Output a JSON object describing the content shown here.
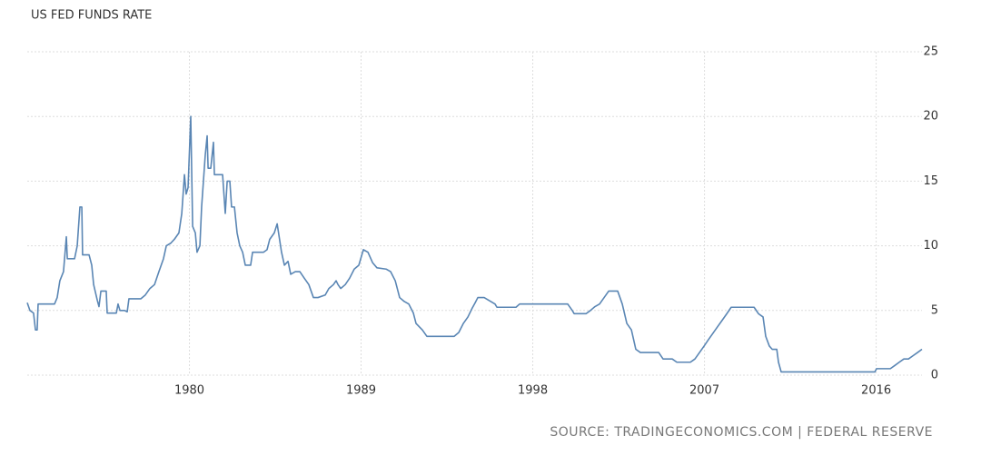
{
  "chart_data": {
    "type": "line",
    "title": "US FED FUNDS RATE",
    "source": "SOURCE: TRADINGECONOMICS.COM | FEDERAL RESERVE",
    "x": [
      1971.5,
      1971.64,
      1971.83,
      1971.93,
      1972.02,
      1972.07,
      1972.93,
      1973.07,
      1973.21,
      1973.4,
      1973.55,
      1973.6,
      1973.98,
      1974.12,
      1974.26,
      1974.36,
      1974.4,
      1974.74,
      1974.88,
      1974.98,
      1975.17,
      1975.26,
      1975.36,
      1975.64,
      1975.69,
      1975.98,
      1976.17,
      1976.26,
      1976.36,
      1976.6,
      1976.74,
      1976.83,
      1977.45,
      1977.69,
      1977.93,
      1978.17,
      1978.4,
      1978.64,
      1978.79,
      1979.02,
      1979.21,
      1979.45,
      1979.6,
      1979.74,
      1979.83,
      1979.93,
      1980.07,
      1980.17,
      1980.31,
      1980.4,
      1980.55,
      1980.64,
      1980.83,
      1980.93,
      1980.98,
      1981.12,
      1981.26,
      1981.31,
      1981.74,
      1981.88,
      1981.98,
      1982.12,
      1982.21,
      1982.36,
      1982.5,
      1982.64,
      1982.79,
      1982.93,
      1983.21,
      1983.31,
      1983.64,
      1983.88,
      1984.07,
      1984.21,
      1984.45,
      1984.6,
      1984.83,
      1984.98,
      1985.17,
      1985.31,
      1985.55,
      1985.79,
      1986.02,
      1986.26,
      1986.5,
      1986.74,
      1987.12,
      1987.31,
      1987.55,
      1987.69,
      1987.79,
      1987.93,
      1988.17,
      1988.4,
      1988.64,
      1988.88,
      1989.12,
      1989.36,
      1989.6,
      1989.83,
      1990.31,
      1990.55,
      1990.79,
      1991.02,
      1991.26,
      1991.5,
      1991.74,
      1991.88,
      1992.21,
      1992.45,
      1992.93,
      1993.88,
      1994.12,
      1994.36,
      1994.6,
      1994.83,
      1994.98,
      1995.12,
      1995.45,
      1995.79,
      1996.02,
      1996.12,
      1997.12,
      1997.31,
      1997.69,
      1998.64,
      1999.83,
      2000.07,
      2000.17,
      2000.79,
      2001.02,
      2001.26,
      2001.5,
      2001.74,
      2001.98,
      2002.45,
      2002.69,
      2002.93,
      2003.17,
      2003.4,
      2003.64,
      2004.12,
      2004.6,
      2004.83,
      2005.31,
      2005.55,
      2006.26,
      2006.5,
      2006.74,
      2006.98,
      2007.21,
      2007.45,
      2007.69,
      2007.93,
      2008.17,
      2008.4,
      2009.6,
      2009.83,
      2010.07,
      2010.21,
      2010.4,
      2010.55,
      2010.79,
      2010.88,
      2011.02,
      2012.93,
      2015.79,
      2015.93,
      2016.02,
      2016.5,
      2016.74,
      2016.98,
      2017.21,
      2017.45,
      2017.69,
      2017.93,
      2018.17,
      2018.4
    ],
    "values": [
      5.6,
      5.0,
      4.8,
      3.5,
      3.5,
      5.5,
      5.5,
      6,
      7.3,
      8,
      10.7,
      9,
      9,
      10,
      13,
      13,
      9.3,
      9.3,
      8.5,
      7,
      5.8,
      5.3,
      6.5,
      6.5,
      4.8,
      4.8,
      4.8,
      5.5,
      5,
      5,
      4.9,
      5.9,
      5.9,
      6.2,
      6.7,
      7,
      8,
      9,
      10,
      10.2,
      10.5,
      11,
      12.5,
      15.5,
      14,
      14.5,
      20,
      11.5,
      11,
      9.5,
      10,
      13,
      17,
      18.5,
      16,
      16,
      18,
      15.5,
      15.5,
      12.5,
      15,
      15,
      13,
      13,
      11,
      10,
      9.5,
      8.5,
      8.5,
      9.5,
      9.5,
      9.5,
      9.7,
      10.5,
      11,
      11.7,
      9.5,
      8.5,
      8.8,
      7.8,
      8,
      8,
      7.5,
      7,
      6,
      6,
      6.2,
      6.7,
      7,
      7.3,
      7,
      6.7,
      7,
      7.5,
      8.2,
      8.5,
      9.7,
      9.5,
      8.7,
      8.3,
      8.2,
      8,
      7.3,
      6,
      5.7,
      5.5,
      4.8,
      4,
      3.5,
      3,
      3,
      3,
      3.3,
      4,
      4.5,
      5.2,
      5.6,
      6,
      6,
      5.7,
      5.5,
      5.25,
      5.25,
      5.5,
      5.5,
      5.5,
      5.5,
      5.0,
      4.75,
      4.75,
      5.0,
      5.3,
      5.5,
      6,
      6.5,
      6.5,
      5.5,
      4,
      3.5,
      2,
      1.75,
      1.75,
      1.75,
      1.25,
      1.25,
      1.0,
      1.0,
      1.25,
      1.75,
      2.25,
      2.75,
      3.25,
      3.75,
      4.25,
      4.75,
      5.25,
      5.25,
      4.75,
      4.5,
      3,
      2.25,
      2,
      2,
      1,
      0.25,
      0.25,
      0.25,
      0.25,
      0.5,
      0.5,
      0.5,
      0.75,
      1.0,
      1.25,
      1.25,
      1.5,
      1.75,
      2.0
    ],
    "color": "#5a86b4",
    "xlim": [
      1971.5,
      2018.4
    ],
    "xticks": [
      1980,
      1989,
      1998,
      2007,
      2016
    ],
    "ylim": [
      0,
      25
    ],
    "yticks": [
      0,
      5,
      10,
      15,
      20,
      25
    ],
    "grid": true
  }
}
